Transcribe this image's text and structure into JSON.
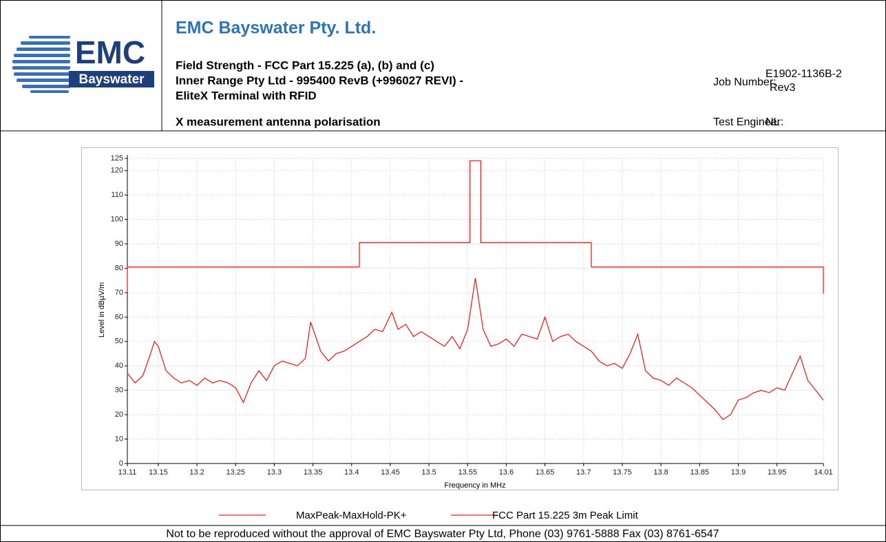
{
  "logo": {
    "text": "EMC",
    "subtext": "Bayswater"
  },
  "header": {
    "company": "EMC Bayswater Pty. Ltd.",
    "title_lines": [
      "Field Strength - FCC Part 15.225 (a), (b) and (c)",
      "Inner Range Pty Ltd - 995400 RevB (+996027 REVI) -",
      "EliteX Terminal with RFID",
      "X measurement antenna polarisation"
    ],
    "job_label": "Job Number:",
    "job_number": [
      "E1902-1136B-2",
      "Rev3"
    ],
    "engineer_label": "Test Engineer:",
    "engineer": "NL"
  },
  "footer": "Not to be reproduced without the approval of EMC Bayswater Pty Ltd, Phone (03) 9761-5888 Fax (03) 8761-6547",
  "chart_data": {
    "type": "line",
    "xlabel": "Frequency in MHz",
    "ylabel": "Level in dBµV/m",
    "xlim": [
      13.11,
      14.01
    ],
    "ylim": [
      0,
      125
    ],
    "xticks": [
      13.11,
      13.15,
      13.2,
      13.25,
      13.3,
      13.35,
      13.4,
      13.45,
      13.5,
      13.55,
      13.6,
      13.65,
      13.7,
      13.75,
      13.8,
      13.85,
      13.9,
      13.95,
      14.01
    ],
    "yticks": [
      0,
      10,
      20,
      30,
      40,
      50,
      60,
      70,
      80,
      90,
      100,
      110,
      120,
      125
    ],
    "grid": true,
    "series": [
      {
        "name": "MaxPeak-MaxHold-PK+",
        "color": "#e8231f",
        "x": [
          13.11,
          13.12,
          13.13,
          13.14,
          13.145,
          13.15,
          13.16,
          13.17,
          13.18,
          13.19,
          13.2,
          13.21,
          13.22,
          13.23,
          13.24,
          13.25,
          13.26,
          13.27,
          13.28,
          13.29,
          13.3,
          13.31,
          13.32,
          13.33,
          13.34,
          13.347,
          13.36,
          13.37,
          13.38,
          13.39,
          13.4,
          13.41,
          13.42,
          13.43,
          13.44,
          13.452,
          13.46,
          13.47,
          13.48,
          13.49,
          13.5,
          13.51,
          13.52,
          13.53,
          13.54,
          13.55,
          13.56,
          13.57,
          13.58,
          13.59,
          13.6,
          13.61,
          13.62,
          13.63,
          13.64,
          13.65,
          13.66,
          13.67,
          13.68,
          13.69,
          13.7,
          13.71,
          13.72,
          13.73,
          13.74,
          13.75,
          13.76,
          13.77,
          13.78,
          13.79,
          13.8,
          13.81,
          13.82,
          13.83,
          13.84,
          13.85,
          13.86,
          13.87,
          13.88,
          13.89,
          13.9,
          13.91,
          13.92,
          13.93,
          13.94,
          13.95,
          13.96,
          13.97,
          13.98,
          13.99,
          14.0,
          14.01
        ],
        "values": [
          37,
          33,
          36,
          45,
          50,
          48,
          38,
          35,
          33,
          34,
          32,
          35,
          33,
          34,
          33,
          31,
          25,
          33,
          38,
          34,
          40,
          42,
          41,
          40,
          43,
          58,
          46,
          42,
          45,
          46,
          48,
          50,
          52,
          55,
          54,
          62,
          55,
          57,
          52,
          54,
          52,
          50,
          48,
          52,
          47,
          55,
          76,
          55,
          48,
          49,
          51,
          48,
          53,
          52,
          51,
          60,
          50,
          52,
          53,
          50,
          48,
          46,
          42,
          40,
          41,
          39,
          45,
          53,
          38,
          35,
          34,
          32,
          35,
          33,
          31,
          28,
          25,
          22,
          18,
          20,
          26,
          27,
          29,
          30,
          29,
          31,
          30,
          37,
          44,
          34,
          30,
          26
        ]
      },
      {
        "name": "FCC Part 15.225 3m Peak Limit",
        "color": "#e8231f",
        "x": [
          13.11,
          13.11,
          13.41,
          13.41,
          13.553,
          13.553,
          13.567,
          13.567,
          13.71,
          13.71,
          14.01,
          14.01
        ],
        "values": [
          70,
          80.5,
          80.5,
          90.5,
          90.5,
          124,
          124,
          90.5,
          90.5,
          80.5,
          80.5,
          69.5
        ]
      }
    ]
  }
}
